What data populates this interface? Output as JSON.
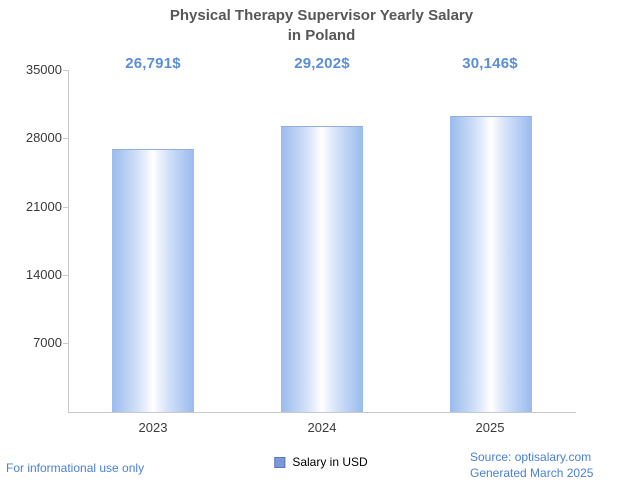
{
  "title": {
    "line1": "Physical Therapy Supervisor Yearly Salary",
    "line2": "in Poland"
  },
  "chart_data": {
    "type": "bar",
    "title": "Physical Therapy Supervisor Yearly Salary in Poland",
    "categories": [
      "2023",
      "2024",
      "2025"
    ],
    "values": [
      26791,
      29202,
      30146
    ],
    "value_labels": [
      "26,791$",
      "29,202$",
      "30,146$"
    ],
    "series_name": "Salary in USD",
    "xlabel": "",
    "ylabel": "",
    "ylim": [
      0,
      35000
    ],
    "yticks": [
      7000,
      14000,
      21000,
      28000,
      35000
    ],
    "ytick_display": [
      "35000",
      "28000",
      "21000",
      "14000",
      "7000"
    ],
    "grid": false,
    "legend_position": "bottom",
    "bar_color_edge": "#9abbed",
    "bar_color_center": "#ffffff",
    "value_label_color": "#5b8ed9"
  },
  "legend": {
    "label": "Salary in USD",
    "swatch_color": "#7e99d9"
  },
  "footer": {
    "left": "For informational use only",
    "source": "Source: optisalary.com",
    "generated": "Generated March 2025",
    "text_color": "#4a80d6"
  }
}
